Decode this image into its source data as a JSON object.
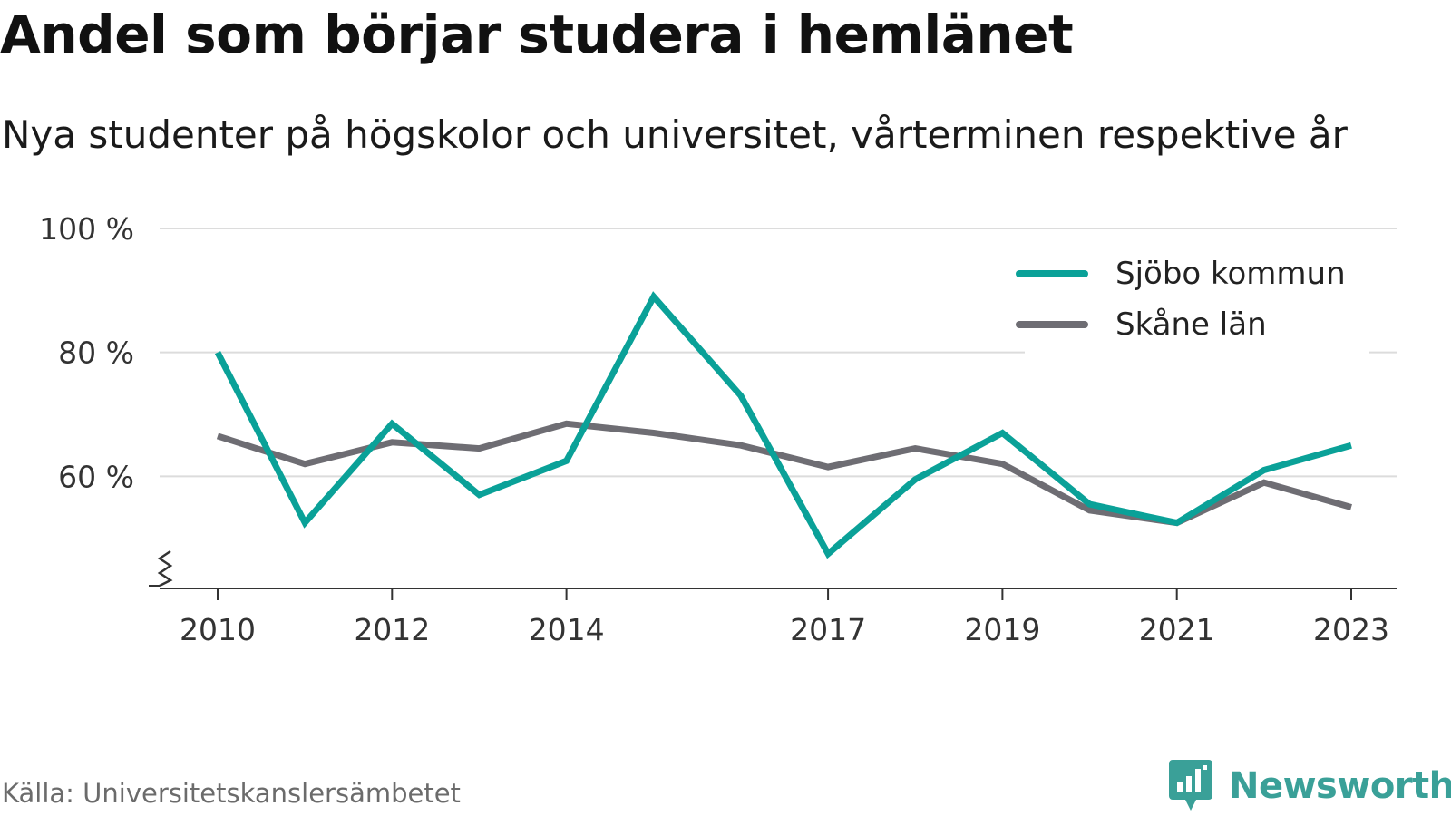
{
  "title": "Andel som börjar studera i hemlänet",
  "subtitle": "Nya studenter på högskolor och universitet, vårterminen respektive år",
  "source": "Källa: Universitetskanslersämbetet",
  "brand": "Newsworthy",
  "colors": {
    "sjobo": "#0aa198",
    "skane": "#6e6d73",
    "grid": "#dcdcdc",
    "axis": "#333333",
    "brand": "#3aa098"
  },
  "chart_data": {
    "type": "line",
    "title": "Andel som börjar studera i hemlänet",
    "subtitle": "Nya studenter på högskolor och universitet, vårterminen respektive år",
    "x": [
      2010,
      2011,
      2012,
      2013,
      2014,
      2015,
      2016,
      2017,
      2018,
      2019,
      2020,
      2021,
      2022,
      2023
    ],
    "x_ticks": [
      "2010",
      "2012",
      "2014",
      "2017",
      "2019",
      "2021",
      "2023"
    ],
    "y_ticks": [
      "60 %",
      "80 %",
      "100 %"
    ],
    "ylim": [
      40,
      100
    ],
    "y_axis_break": true,
    "grid": true,
    "legend_position": "top-right",
    "series": [
      {
        "name": "Sjöbo kommun",
        "color": "#0aa198",
        "values": [
          80,
          52.5,
          68.5,
          57,
          62.5,
          89,
          73,
          47.5,
          59.5,
          67,
          55.5,
          52.5,
          61,
          65
        ]
      },
      {
        "name": "Skåne län",
        "color": "#6e6d73",
        "values": [
          66.5,
          62,
          65.5,
          64.5,
          68.5,
          67,
          65,
          61.5,
          64.5,
          62,
          54.5,
          52.5,
          59,
          55
        ]
      }
    ]
  }
}
